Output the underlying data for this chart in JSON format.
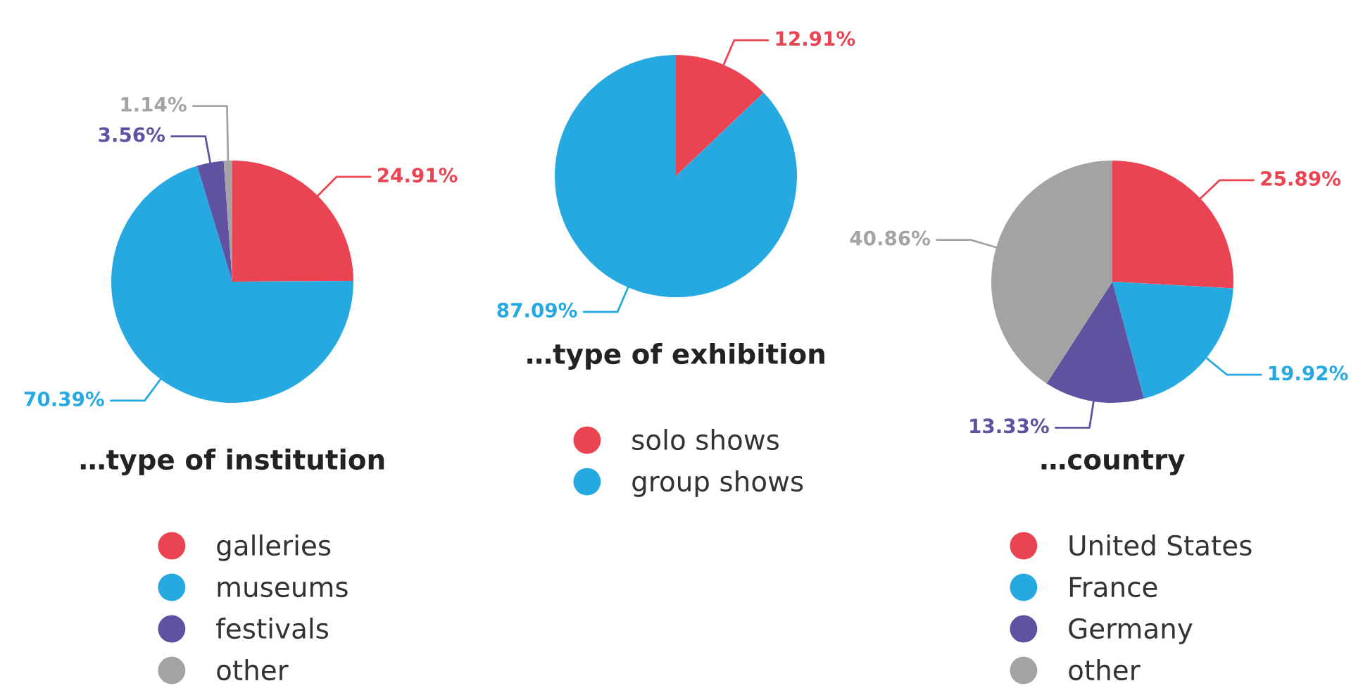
{
  "chart_data": [
    {
      "type": "pie",
      "title": "…type of institution",
      "categories": [
        "galleries",
        "museums",
        "festivals",
        "other"
      ],
      "values": [
        24.91,
        70.39,
        3.56,
        1.14
      ],
      "value_labels": [
        "24.91%",
        "70.39%",
        "3.56%",
        "1.14%"
      ],
      "colors": [
        "#ea4351",
        "#25a9e0",
        "#5e52a1",
        "#a3a3a3"
      ],
      "legend": "bottom"
    },
    {
      "type": "pie",
      "title": "…type of exhibition",
      "categories": [
        "solo shows",
        "group shows"
      ],
      "values": [
        12.91,
        87.09
      ],
      "value_labels": [
        "12.91%",
        "87.09%"
      ],
      "colors": [
        "#ea4351",
        "#25a9e0"
      ],
      "legend": "bottom"
    },
    {
      "type": "pie",
      "title": "…country",
      "categories": [
        "United States",
        "France",
        "Germany",
        "other"
      ],
      "values": [
        25.89,
        19.92,
        13.33,
        40.86
      ],
      "value_labels": [
        "25.89%",
        "19.92%",
        "13.33%",
        "40.86%"
      ],
      "colors": [
        "#ea4351",
        "#25a9e0",
        "#5e52a1",
        "#a3a3a3"
      ],
      "legend": "bottom"
    }
  ]
}
